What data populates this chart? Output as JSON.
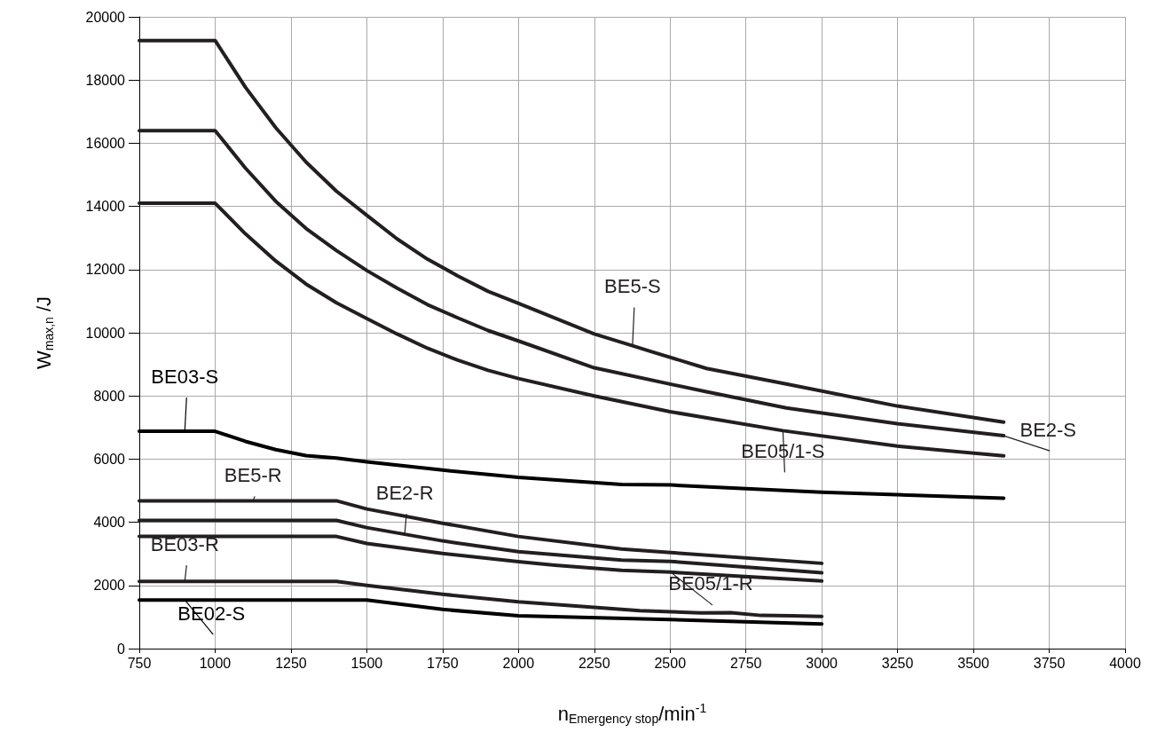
{
  "chart_data": {
    "type": "line",
    "xlabel": "n$_{Emergency stop}$/min$^{-1}$",
    "ylabel": "W$_{max,n}$ /J",
    "xlim": [
      750,
      4000
    ],
    "xticks": [
      750,
      1000,
      1250,
      1500,
      1750,
      2000,
      2250,
      2500,
      2750,
      3000,
      3250,
      3500,
      3750,
      4000
    ],
    "ylim": [
      0,
      20000
    ],
    "yticks": [
      0,
      2000,
      4000,
      6000,
      8000,
      10000,
      12000,
      14000,
      16000,
      18000,
      20000
    ],
    "grid": true,
    "legend": false,
    "marker": "none",
    "line_style": "solid",
    "series": [
      {
        "name": "BE5-S",
        "color": "#231f20",
        "x": [
          750,
          1000,
          1100,
          1200,
          1300,
          1400,
          1500,
          1600,
          1700,
          1800,
          1900,
          2000,
          2250,
          2376,
          2439,
          2620,
          2883,
          3249,
          3600
        ],
        "values": [
          19250,
          19250,
          17770,
          16490,
          15400,
          14480,
          13720,
          12970,
          12330,
          11800,
          11310,
          10930,
          9960,
          9590,
          9400,
          8870,
          8380,
          7680,
          7170
        ]
      },
      {
        "name": "BE2-S",
        "color": "#231f20",
        "x": [
          750,
          1000,
          1100,
          1200,
          1300,
          1400,
          1500,
          1600,
          1700,
          1800,
          1900,
          2000,
          2250,
          2620,
          2883,
          3249,
          3600
        ],
        "values": [
          16400,
          16400,
          15210,
          14160,
          13300,
          12600,
          11970,
          11410,
          10890,
          10470,
          10070,
          9740,
          8890,
          8130,
          7620,
          7120,
          6740
        ]
      },
      {
        "name": "BE05/1-S",
        "color": "#231f20",
        "x": [
          750,
          1000,
          1100,
          1200,
          1300,
          1400,
          1500,
          1600,
          1700,
          1800,
          1900,
          2000,
          2250,
          2500,
          2872,
          3249,
          3600
        ],
        "values": [
          14100,
          14100,
          13130,
          12270,
          11540,
          10950,
          10450,
          9960,
          9510,
          9130,
          8810,
          8550,
          8000,
          7500,
          6900,
          6410,
          6100
        ]
      },
      {
        "name": "BE03-S",
        "color": "#000000",
        "x": [
          750,
          900,
          1000,
          1100,
          1200,
          1300,
          1400,
          1500,
          1750,
          2000,
          2340,
          2502,
          3000,
          3600
        ],
        "values": [
          6880,
          6880,
          6880,
          6560,
          6300,
          6110,
          6030,
          5910,
          5650,
          5420,
          5200,
          5180,
          4950,
          4760
        ]
      },
      {
        "name": "BE5-R",
        "color": "#231f20",
        "x": [
          750,
          1125,
          1400,
          1500,
          1750,
          2000,
          2340,
          2502,
          3000
        ],
        "values": [
          4680,
          4680,
          4680,
          4420,
          3970,
          3550,
          3150,
          3040,
          2700
        ]
      },
      {
        "name": "BE2-R",
        "color": "#231f20",
        "x": [
          750,
          1400,
          1500,
          1625,
          1750,
          2000,
          2340,
          2502,
          3000
        ],
        "values": [
          4060,
          4060,
          3830,
          3620,
          3410,
          3070,
          2800,
          2760,
          2400
        ]
      },
      {
        "name": "BE05/1-R",
        "color": "#231f20",
        "x": [
          750,
          1400,
          1500,
          1750,
          2000,
          2120,
          2340,
          2502,
          3000
        ],
        "values": [
          3550,
          3550,
          3330,
          3010,
          2750,
          2640,
          2480,
          2420,
          2140
        ]
      },
      {
        "name": "BE03-R",
        "color": "#231f20",
        "x": [
          750,
          900,
          1400,
          1500,
          1750,
          2000,
          2400,
          2600,
          2700,
          2800,
          2900,
          3000
        ],
        "values": [
          2130,
          2130,
          2130,
          2000,
          1720,
          1480,
          1200,
          1130,
          1140,
          1050,
          1040,
          1020
        ]
      },
      {
        "name": "BE02-S",
        "color": "#000000",
        "x": [
          750,
          900,
          1500,
          1750,
          2000,
          2500,
          3000
        ],
        "values": [
          1540,
          1540,
          1540,
          1240,
          1040,
          920,
          780
        ]
      }
    ]
  }
}
